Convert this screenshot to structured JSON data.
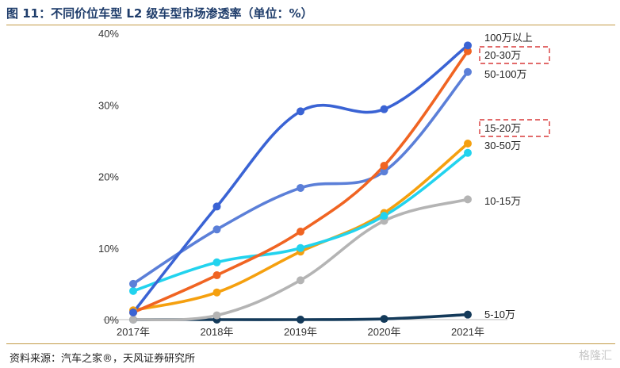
{
  "figure": {
    "title": "图 11：不同价位车型 L2 级车型市场渗透率（单位：%）",
    "source": "资料来源：汽车之家®，天风证券研究所",
    "watermark": "格隆汇"
  },
  "chart_data": {
    "type": "line",
    "title": "",
    "xlabel": "",
    "ylabel": "",
    "categories": [
      "2017年",
      "2018年",
      "2019年",
      "2020年",
      "2021年"
    ],
    "yticks": [
      "0%",
      "10%",
      "20%",
      "30%",
      "40%"
    ],
    "ylim": [
      0,
      40
    ],
    "grid": false,
    "legend_placement": "right-end-labels",
    "series": [
      {
        "name": "100万以上",
        "color": "#3a63d4",
        "values": [
          1.0,
          15.8,
          29.1,
          29.4,
          38.3
        ],
        "highlight": false
      },
      {
        "name": "20-30万",
        "color": "#f06422",
        "values": [
          1.0,
          6.2,
          12.3,
          21.5,
          37.5
        ],
        "highlight": true
      },
      {
        "name": "50-100万",
        "color": "#5b7fd8",
        "values": [
          5.0,
          12.6,
          18.4,
          20.7,
          34.6
        ],
        "highlight": false
      },
      {
        "name": "15-20万",
        "color": "#22d3ee",
        "values": [
          4.0,
          8.0,
          10.0,
          14.5,
          23.3
        ],
        "highlight": true
      },
      {
        "name": "30-50万",
        "color": "#f5a00f",
        "values": [
          1.3,
          3.8,
          9.5,
          14.9,
          24.6
        ],
        "highlight": false
      },
      {
        "name": "10-15万",
        "color": "#b4b4b4",
        "values": [
          0.0,
          0.6,
          5.5,
          13.8,
          16.8
        ],
        "highlight": false
      },
      {
        "name": "5-10万",
        "color": "#143a5a",
        "values": [
          0.0,
          0.0,
          0.0,
          0.1,
          0.7
        ],
        "highlight": false
      }
    ]
  }
}
